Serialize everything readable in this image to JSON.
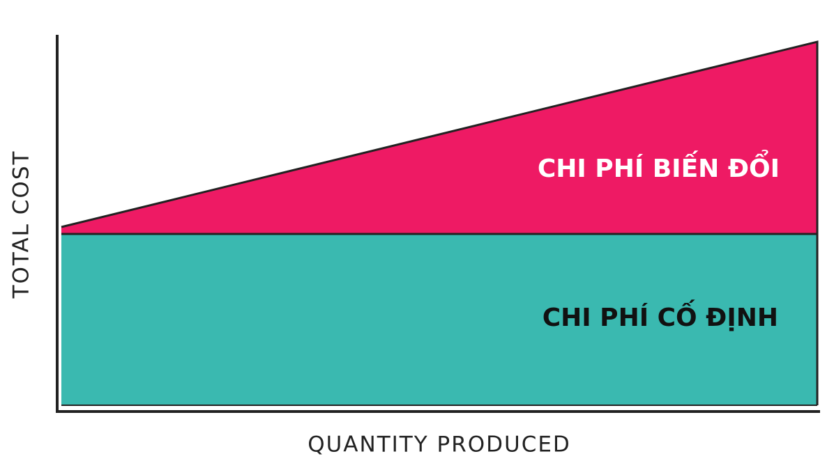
{
  "diagram": {
    "y_axis_label": "TOTAL COST",
    "x_axis_label": "QUANTITY PRODUCED",
    "regions": [
      {
        "label": "CHI PHÍ BIẾN ĐỔI"
      },
      {
        "label": "CHI PHÍ CỐ ĐỊNH"
      }
    ]
  }
}
